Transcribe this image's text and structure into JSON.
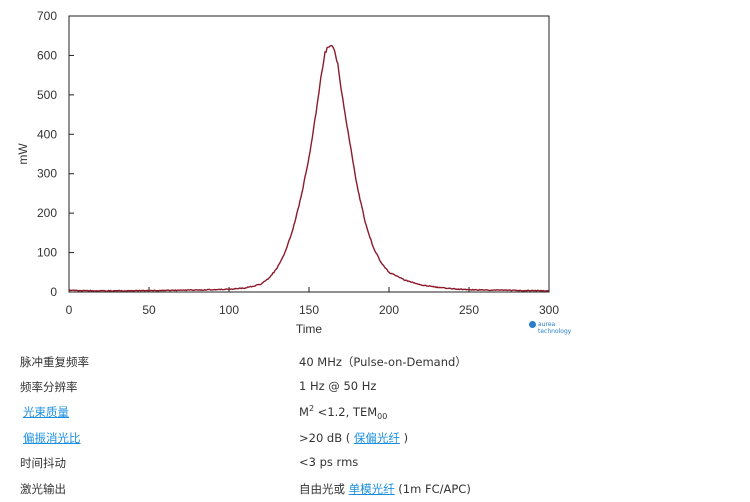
{
  "chart_data": {
    "type": "line",
    "xlabel": "Time",
    "ylabel": "mW",
    "xlim": [
      0,
      300
    ],
    "ylim": [
      0,
      700
    ],
    "xticks": [
      0,
      50,
      100,
      150,
      200,
      250,
      300
    ],
    "yticks": [
      0,
      100,
      200,
      300,
      400,
      500,
      600,
      700
    ],
    "grid": false,
    "line_color": "#8b1a2b",
    "series": [
      {
        "x": [
          0,
          20,
          40,
          60,
          80,
          100,
          110,
          120,
          125,
          130,
          135,
          140,
          145,
          150,
          155,
          158,
          160,
          162,
          164,
          166,
          168,
          170,
          175,
          180,
          185,
          190,
          195,
          200,
          210,
          220,
          230,
          240,
          250,
          260,
          280,
          300
        ],
        "y": [
          4,
          3,
          3,
          4,
          5,
          7,
          10,
          20,
          35,
          60,
          100,
          160,
          240,
          340,
          470,
          560,
          605,
          625,
          628,
          610,
          580,
          520,
          390,
          270,
          180,
          115,
          75,
          50,
          30,
          18,
          12,
          8,
          6,
          5,
          4,
          3
        ]
      }
    ]
  },
  "brand": {
    "name": "aurea",
    "tagline": "technology"
  },
  "specs": [
    {
      "label": "脉冲重复频率",
      "value": "40 MHz（Pulse-on-Demand）"
    },
    {
      "label": "频率分辨率",
      "value": "1 Hz @ 50 Hz"
    },
    {
      "label": "光束质量",
      "value_m": "M",
      "value_m_sup": "2",
      "value_mid": " <1.2, TEM",
      "value_sub": "00"
    },
    {
      "label": "偏振消光比",
      "value_pre": ">20 dB ( ",
      "value_link": "保偏光纤",
      "value_post": " )"
    },
    {
      "label": "时间抖动",
      "value": "<3 ps rms"
    },
    {
      "label": "激光输出",
      "value_pre": "自由光或 ",
      "value_link": "单模光纤",
      "value_post": " (1m FC/APC)"
    }
  ]
}
